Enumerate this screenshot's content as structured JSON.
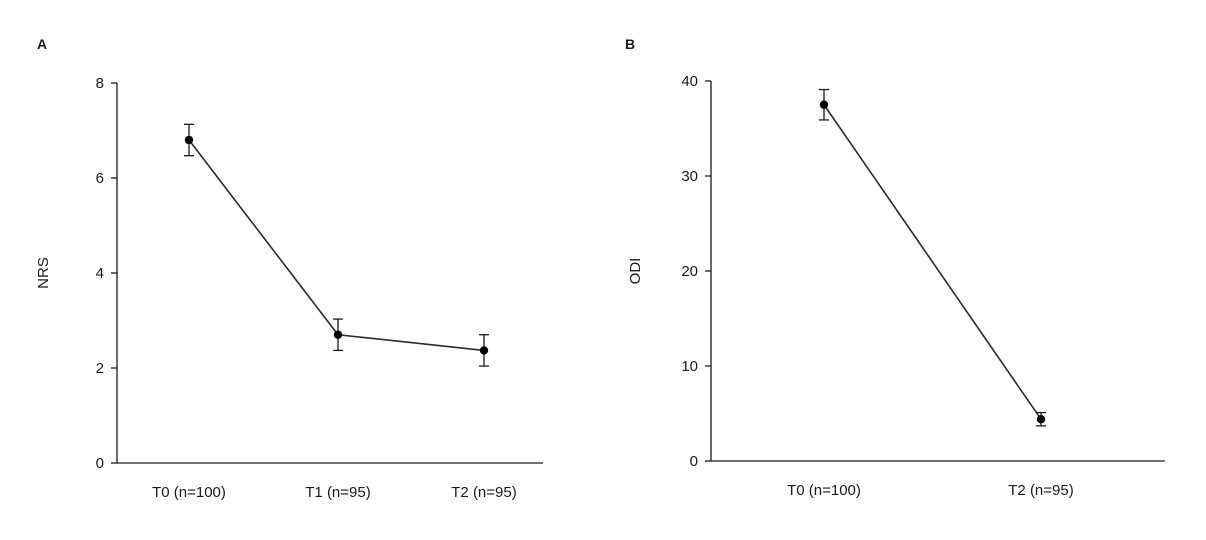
{
  "chart_data": [
    {
      "panel_label": "A",
      "type": "line",
      "title": "",
      "xlabel": "",
      "ylabel": "NRS",
      "categories": [
        "T0 (n=100)",
        "T1 (n=95)",
        "T2 (n=95)"
      ],
      "series": [
        {
          "values": [
            6.8,
            2.7,
            2.37
          ],
          "error": [
            0.33,
            0.33,
            0.33
          ]
        }
      ],
      "ylim": [
        0,
        8
      ],
      "yticks": [
        0,
        2,
        4,
        6,
        8
      ],
      "grid": false,
      "legend": "none"
    },
    {
      "panel_label": "B",
      "type": "line",
      "title": "",
      "xlabel": "",
      "ylabel": "ODI",
      "categories": [
        "T0 (n=100)",
        "T2 (n=95)"
      ],
      "series": [
        {
          "values": [
            37.5,
            4.4
          ],
          "error": [
            1.6,
            0.7
          ]
        }
      ],
      "ylim": [
        0,
        40
      ],
      "yticks": [
        0,
        10,
        20,
        30,
        40
      ],
      "grid": false,
      "legend": "none"
    }
  ]
}
